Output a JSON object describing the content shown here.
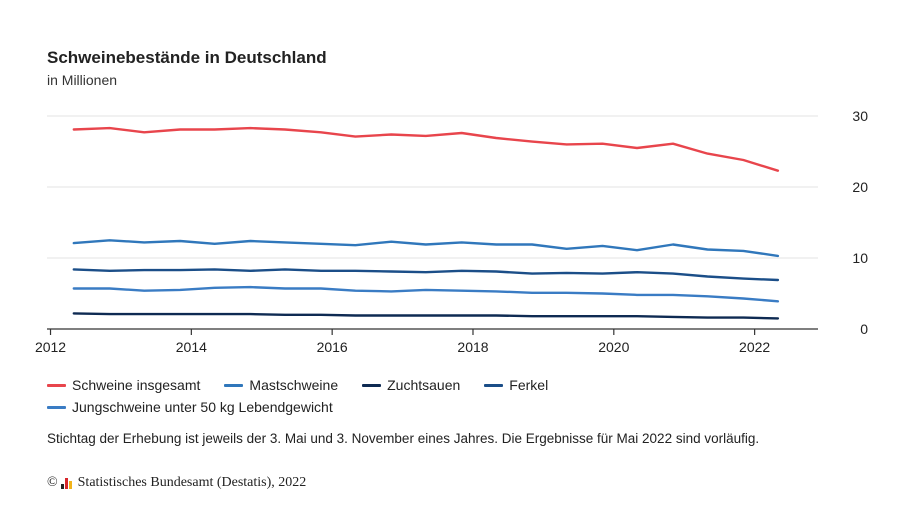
{
  "header": {
    "title": "Schweinebestände in Deutschland",
    "subtitle": "in Millionen"
  },
  "note": "Stichtag der Erhebung ist jeweils der 3. Mai und 3. November eines Jahres. Die Ergebnisse für Mai 2022 sind vorläufig.",
  "footer": {
    "copyright_symbol": "©",
    "source": "Statistisches Bundesamt (Destatis), 2022"
  },
  "chart_data": {
    "type": "line",
    "title": "Schweinebestände in Deutschland",
    "subtitle": "in Millionen",
    "x": [
      "Mai 2012",
      "Nov 2012",
      "Mai 2013",
      "Nov 2013",
      "Mai 2014",
      "Nov 2014",
      "Mai 2015",
      "Nov 2015",
      "Mai 2016",
      "Nov 2016",
      "Mai 2017",
      "Nov 2017",
      "Mai 2018",
      "Nov 2018",
      "Mai 2019",
      "Nov 2019",
      "Mai 2020",
      "Nov 2020",
      "Mai 2021",
      "Nov 2021",
      "Mai 2022"
    ],
    "x_numeric": [
      2012.33,
      2012.84,
      2013.33,
      2013.84,
      2014.33,
      2014.84,
      2015.33,
      2015.84,
      2016.33,
      2016.84,
      2017.33,
      2017.84,
      2018.33,
      2018.84,
      2019.33,
      2019.84,
      2020.33,
      2020.84,
      2021.33,
      2021.84,
      2022.33
    ],
    "x_ticks": [
      "2012",
      "2014",
      "2016",
      "2018",
      "2020",
      "2022"
    ],
    "x_tick_values": [
      2012,
      2014,
      2016,
      2018,
      2020,
      2022
    ],
    "xlim": [
      2011.95,
      2022.9
    ],
    "y_ticks": [
      "0",
      "10",
      "20",
      "30"
    ],
    "y_tick_values": [
      0,
      10,
      20,
      30
    ],
    "ylim": [
      0,
      30
    ],
    "grid": true,
    "legend_position": "bottom",
    "series": [
      {
        "name": "Schweine insgesamt",
        "color": "#e8454c",
        "values": [
          28.1,
          28.3,
          27.7,
          28.1,
          28.1,
          28.3,
          28.1,
          27.7,
          27.1,
          27.4,
          27.2,
          27.6,
          26.9,
          26.4,
          26.0,
          26.1,
          25.5,
          26.1,
          24.7,
          23.8,
          22.3
        ]
      },
      {
        "name": "Mastschweine",
        "color": "#3077bb",
        "values": [
          12.1,
          12.5,
          12.2,
          12.4,
          12.0,
          12.4,
          12.2,
          12.0,
          11.8,
          12.3,
          11.9,
          12.2,
          11.9,
          11.9,
          11.3,
          11.7,
          11.1,
          11.9,
          11.2,
          11.0,
          10.3
        ]
      },
      {
        "name": "Zuchtsauen",
        "color": "#0e2a52",
        "values": [
          2.2,
          2.1,
          2.1,
          2.1,
          2.1,
          2.1,
          2.0,
          2.0,
          1.9,
          1.9,
          1.9,
          1.9,
          1.9,
          1.8,
          1.8,
          1.8,
          1.8,
          1.7,
          1.6,
          1.6,
          1.5
        ]
      },
      {
        "name": "Ferkel",
        "color": "#1b4e88",
        "values": [
          8.4,
          8.2,
          8.3,
          8.3,
          8.4,
          8.2,
          8.4,
          8.2,
          8.2,
          8.1,
          8.0,
          8.2,
          8.1,
          7.8,
          7.9,
          7.8,
          8.0,
          7.8,
          7.4,
          7.1,
          6.9
        ]
      },
      {
        "name": "Jungschweine unter 50 kg Lebendgewicht",
        "color": "#3a7cc4",
        "values": [
          5.7,
          5.7,
          5.4,
          5.5,
          5.8,
          5.9,
          5.7,
          5.7,
          5.4,
          5.3,
          5.5,
          5.4,
          5.3,
          5.1,
          5.1,
          5.0,
          4.8,
          4.8,
          4.6,
          4.3,
          3.9
        ]
      }
    ]
  }
}
